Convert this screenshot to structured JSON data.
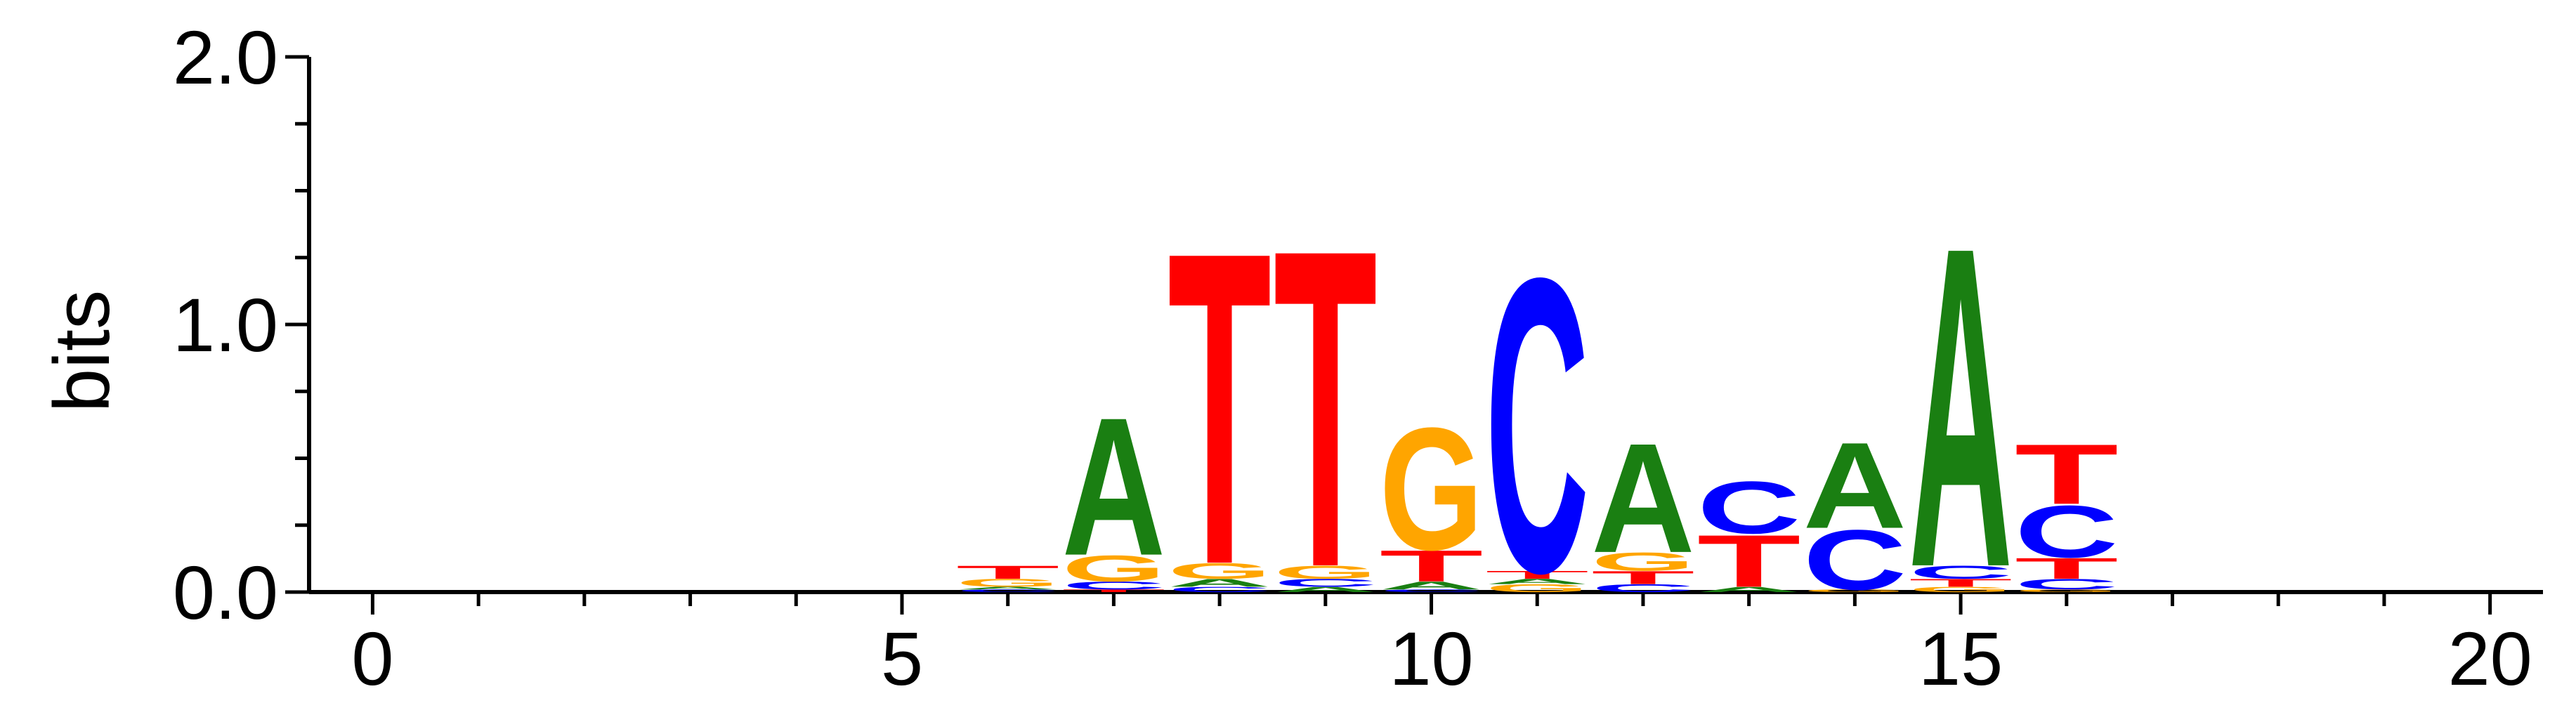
{
  "chart_data": {
    "type": "sequence-logo",
    "title": "",
    "xlabel": "",
    "ylabel": "bits",
    "xlim": [
      -0.6,
      20.5
    ],
    "ylim": [
      0,
      2.0
    ],
    "x_ticks": [
      0,
      5,
      10,
      15,
      20
    ],
    "x_tick_labels": [
      "0",
      "5",
      "10",
      "15",
      "20"
    ],
    "y_ticks": [
      0,
      1,
      2
    ],
    "y_tick_labels": [
      "0.0",
      "1.0",
      "2.0"
    ],
    "x_minor_step": 1,
    "y_minor_step": 0.25,
    "grid": false,
    "letter_colors": {
      "A": "#1a7f12",
      "C": "#0000ff",
      "G": "#ffa500",
      "T": "#ff0000"
    },
    "positions": [
      {
        "x": 6,
        "stack": [
          [
            "C",
            0.01
          ],
          [
            "A",
            0.01
          ],
          [
            "G",
            0.03
          ],
          [
            "T",
            0.05
          ]
        ]
      },
      {
        "x": 7,
        "stack": [
          [
            "T",
            0.01
          ],
          [
            "C",
            0.03
          ],
          [
            "G",
            0.1
          ],
          [
            "A",
            0.53
          ]
        ]
      },
      {
        "x": 8,
        "stack": [
          [
            "C",
            0.02
          ],
          [
            "A",
            0.03
          ],
          [
            "G",
            0.06
          ],
          [
            "T",
            1.2
          ]
        ]
      },
      {
        "x": 9,
        "stack": [
          [
            "A",
            0.02
          ],
          [
            "C",
            0.03
          ],
          [
            "G",
            0.05
          ],
          [
            "T",
            1.22
          ]
        ]
      },
      {
        "x": 10,
        "stack": [
          [
            "C",
            0.01
          ],
          [
            "A",
            0.03
          ],
          [
            "T",
            0.12
          ],
          [
            "G",
            0.47
          ]
        ]
      },
      {
        "x": 11,
        "stack": [
          [
            "G",
            0.03
          ],
          [
            "A",
            0.02
          ],
          [
            "T",
            0.03
          ],
          [
            "C",
            1.13
          ]
        ]
      },
      {
        "x": 12,
        "stack": [
          [
            "C",
            0.03
          ],
          [
            "T",
            0.05
          ],
          [
            "G",
            0.07
          ],
          [
            "A",
            0.42
          ]
        ]
      },
      {
        "x": 13,
        "stack": [
          [
            "A",
            0.02
          ],
          [
            "T",
            0.2
          ],
          [
            "C",
            0.2
          ]
        ]
      },
      {
        "x": 14,
        "stack": [
          [
            "G",
            0.01
          ],
          [
            "C",
            0.23
          ],
          [
            "A",
            0.33
          ]
        ]
      },
      {
        "x": 15,
        "stack": [
          [
            "G",
            0.02
          ],
          [
            "T",
            0.03
          ],
          [
            "C",
            0.05
          ],
          [
            "A",
            1.23
          ]
        ]
      },
      {
        "x": 16,
        "stack": [
          [
            "G",
            0.01
          ],
          [
            "C",
            0.04
          ],
          [
            "T",
            0.08
          ],
          [
            "C",
            0.2
          ],
          [
            "T",
            0.23
          ]
        ]
      }
    ]
  }
}
